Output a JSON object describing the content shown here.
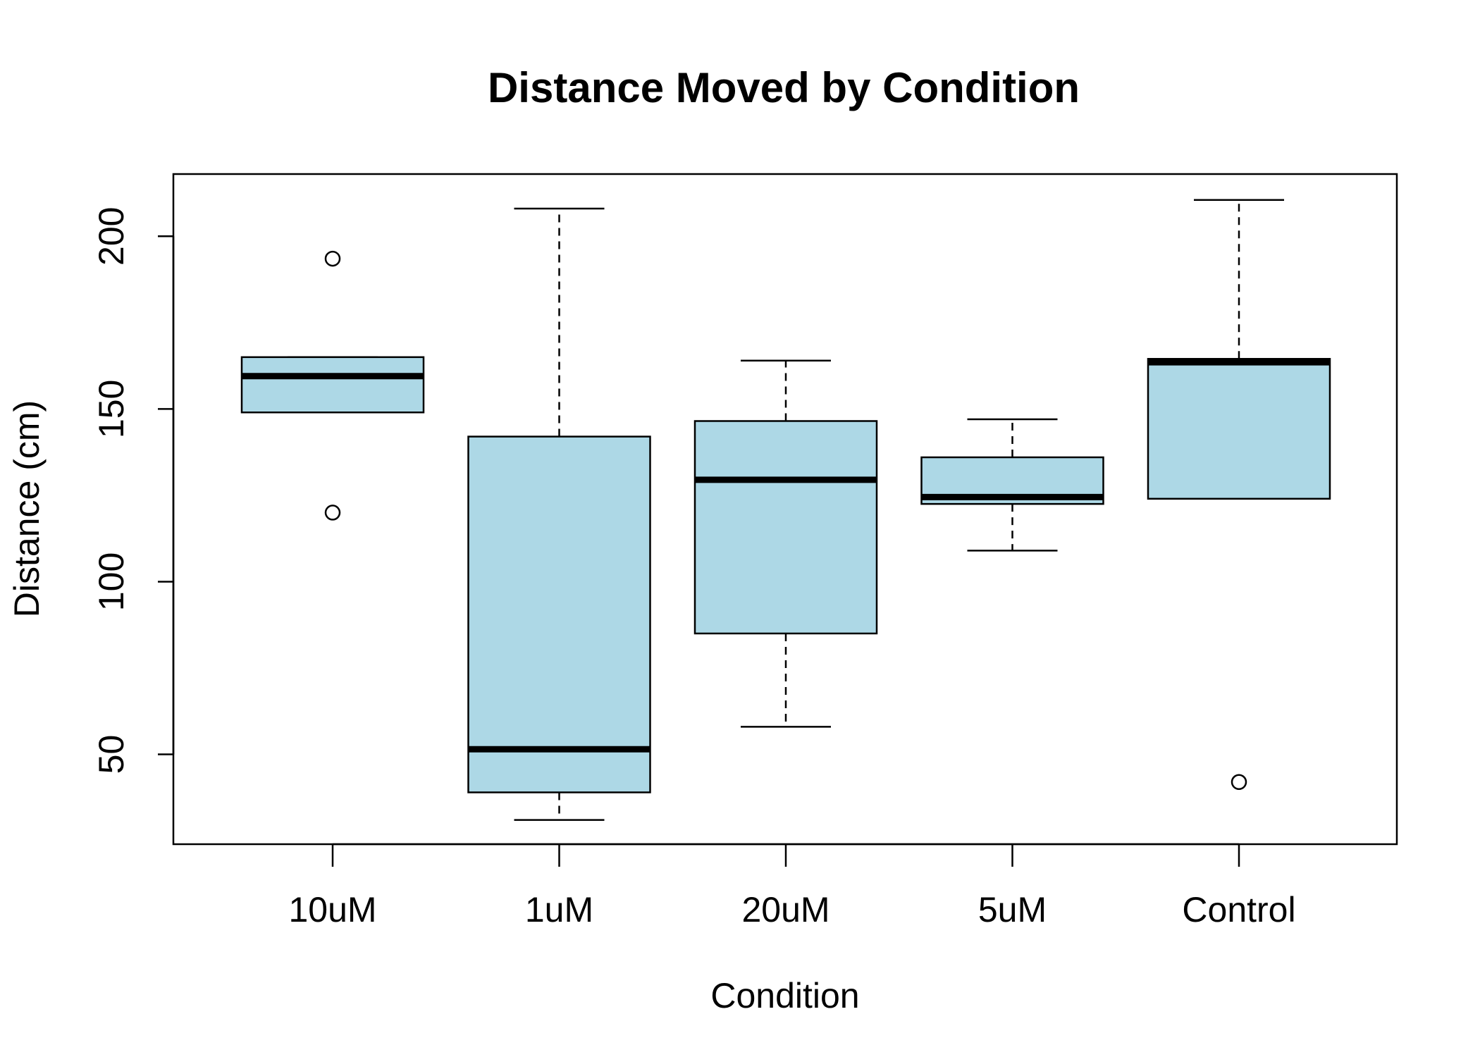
{
  "chart_data": {
    "type": "boxplot",
    "title": "Distance Moved by Condition",
    "xlabel": "Condition",
    "ylabel": "Distance (cm)",
    "ylim": [
      24,
      218
    ],
    "yticks": [
      50,
      100,
      150,
      200
    ],
    "categories": [
      "10uM",
      "1uM",
      "20uM",
      "5uM",
      "Control"
    ],
    "box_color": "#add8e6",
    "grid": false,
    "legend": "none",
    "boxes": [
      {
        "category": "10uM",
        "whisker_low": 149,
        "q1": 149,
        "median": 159.5,
        "q3": 165,
        "whisker_high": 165,
        "outliers": [
          193.5,
          120
        ]
      },
      {
        "category": "1uM",
        "whisker_low": 31,
        "q1": 39,
        "median": 51.5,
        "q3": 142,
        "whisker_high": 208,
        "outliers": []
      },
      {
        "category": "20uM",
        "whisker_low": 58,
        "q1": 85,
        "median": 129.5,
        "q3": 146.5,
        "whisker_high": 164,
        "outliers": []
      },
      {
        "category": "5uM",
        "whisker_low": 109,
        "q1": 122.5,
        "median": 124.5,
        "q3": 136,
        "whisker_high": 147,
        "outliers": []
      },
      {
        "category": "Control",
        "whisker_low": 124,
        "q1": 124,
        "median": 163.5,
        "q3": 164.5,
        "whisker_high": 210.5,
        "outliers": [
          42
        ]
      }
    ]
  }
}
